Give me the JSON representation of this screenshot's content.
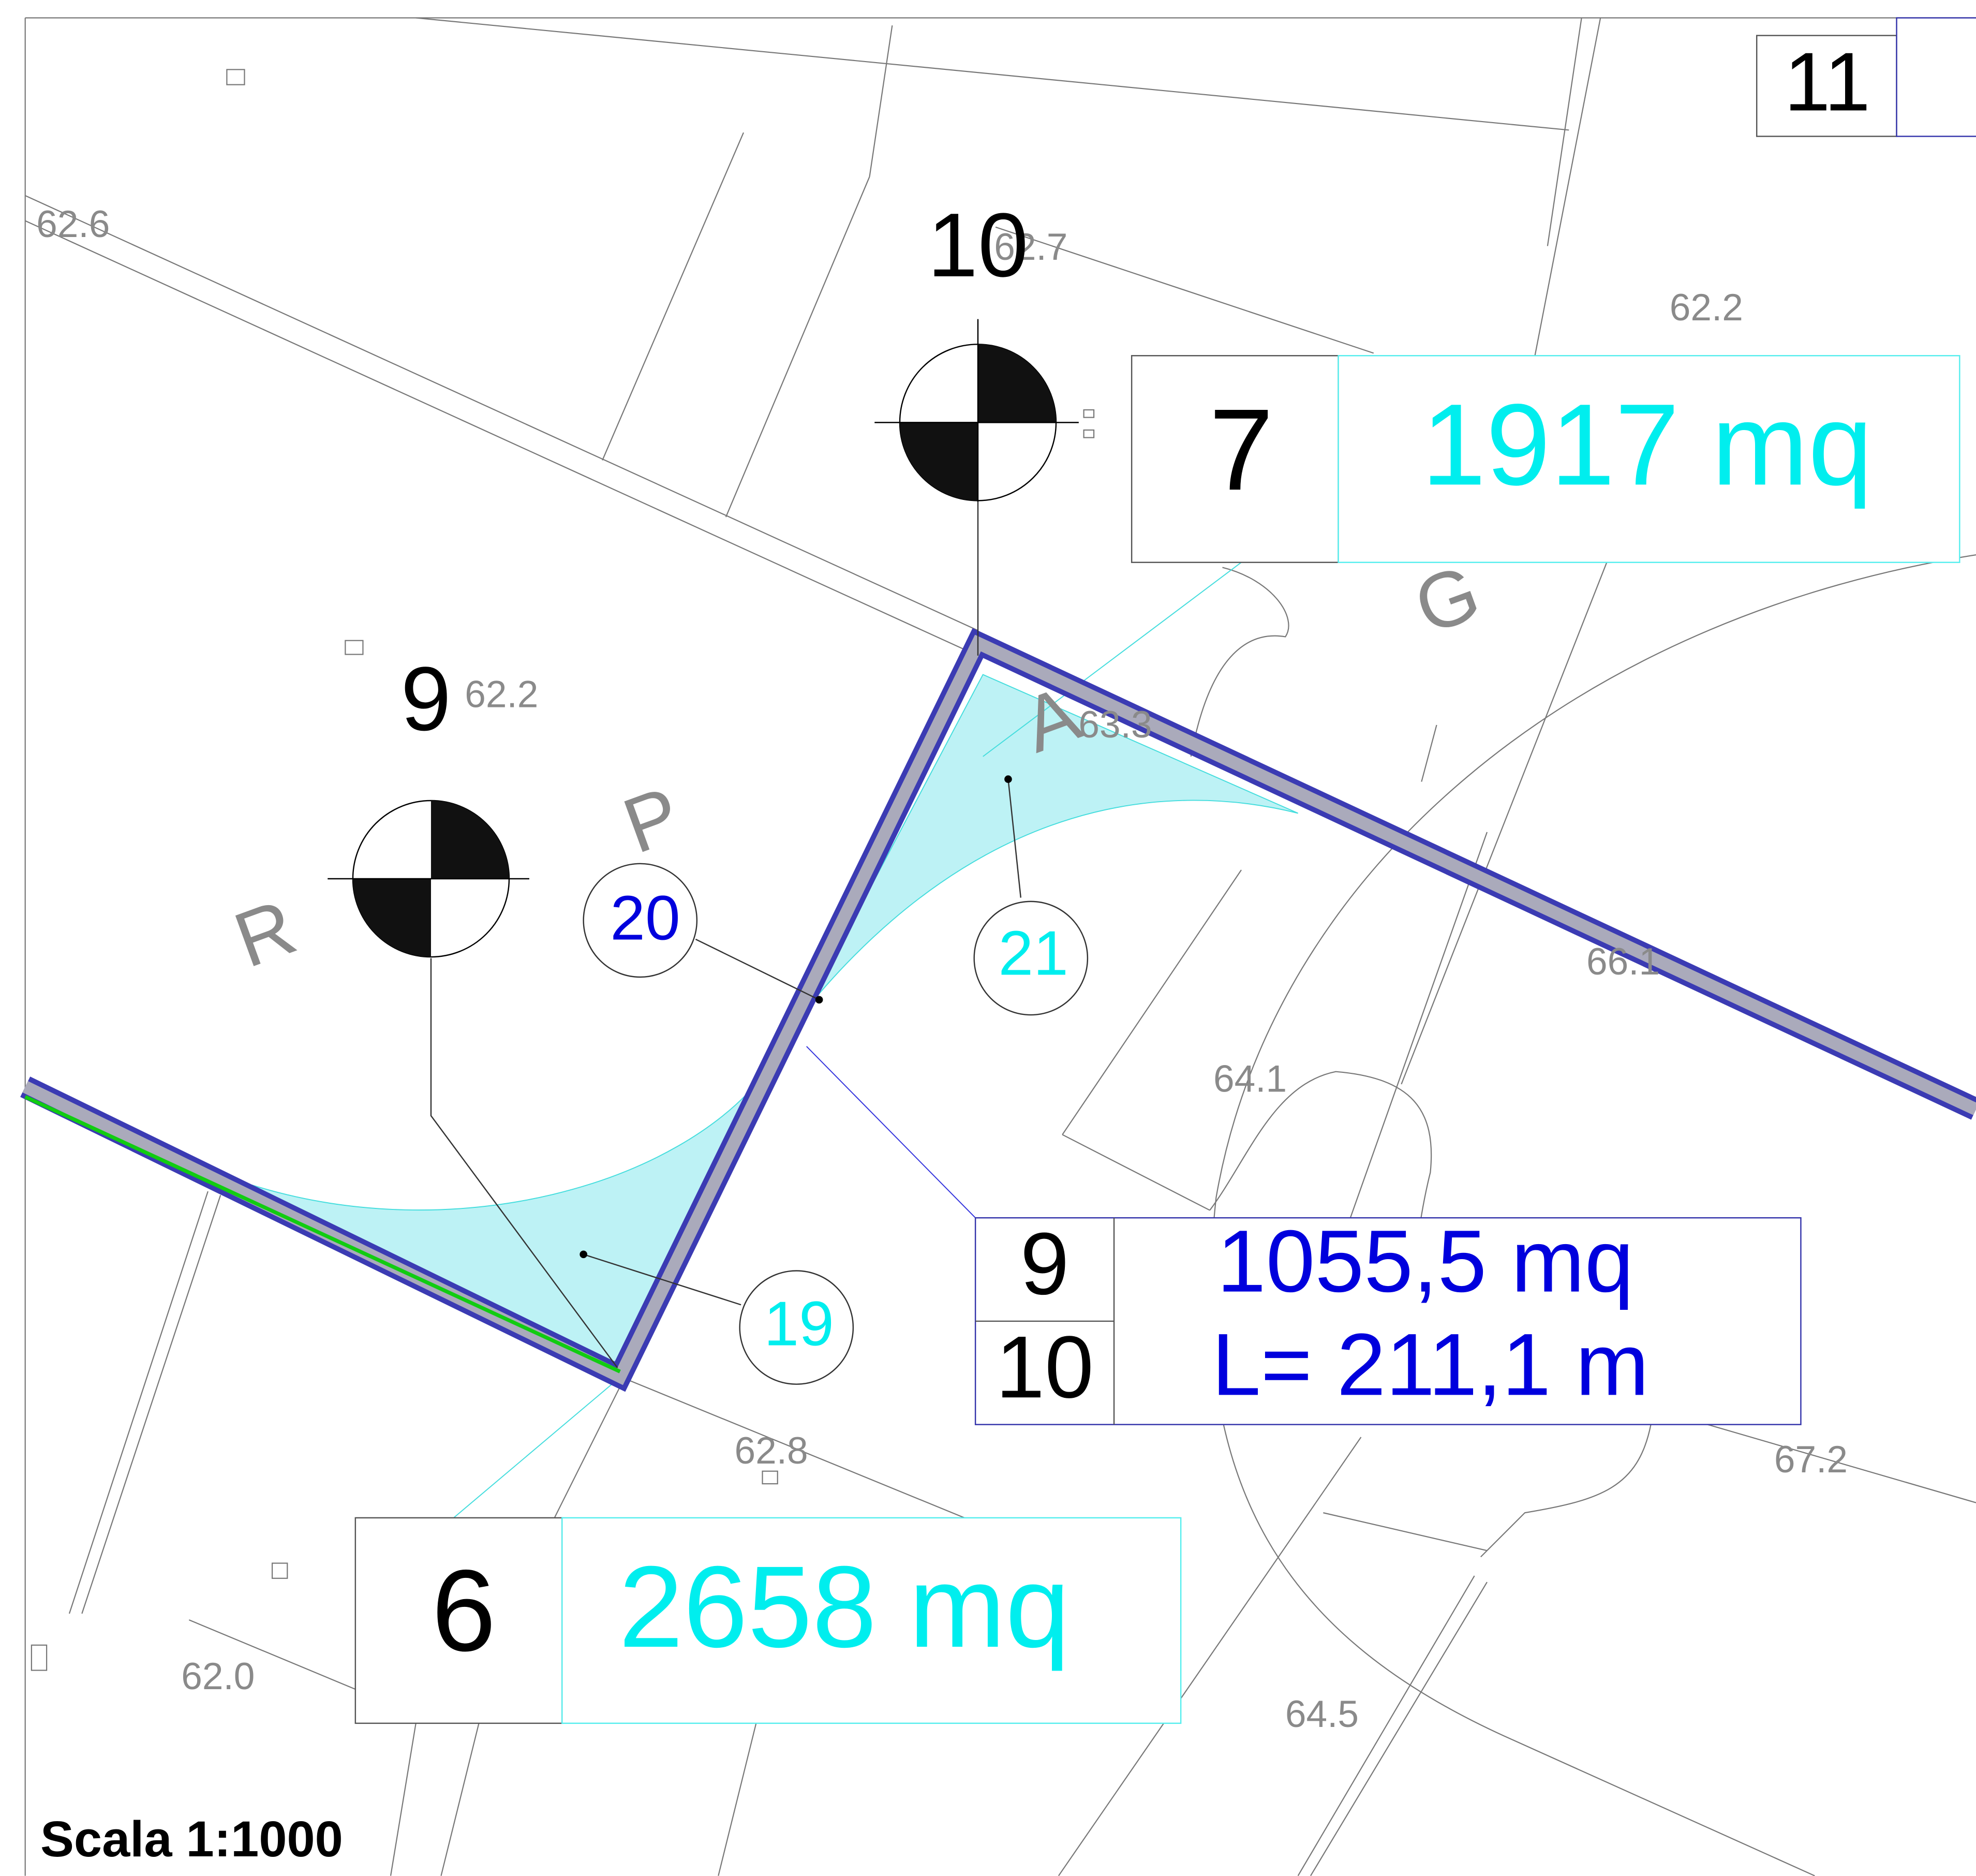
{
  "elevations": [
    "62.6",
    "62.7",
    "62.2",
    "62.2",
    "63.3",
    "66.1",
    "64.1",
    "62.8",
    "67.2",
    "62.0",
    "64.5"
  ],
  "letters": [
    "R",
    "P",
    "A",
    "G"
  ],
  "benchmarks": [
    "10",
    "9"
  ],
  "points": [
    "20",
    "21",
    "19"
  ],
  "parcels": {
    "p7": {
      "number": "7",
      "area": "1917 mq"
    },
    "p6": {
      "number": "6",
      "area": "2658 mq"
    },
    "p11": {
      "number": "11"
    },
    "split": {
      "from": "9",
      "to": "10",
      "area": "1055,5 mq",
      "length": "L= 211,1 m"
    }
  },
  "scale": "Scala 1:1000"
}
